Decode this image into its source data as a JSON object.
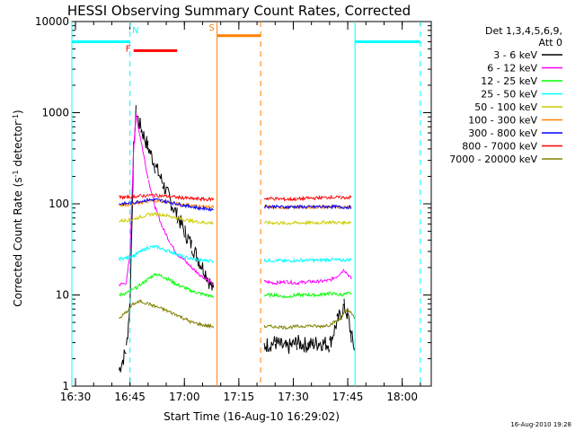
{
  "chart_data": {
    "type": "line",
    "title": "HESSI Observing Summary Count Rates, Corrected",
    "xlabel": "Start Time (16-Aug-10 16:29:02)",
    "ylabel": "Corrected Count Rate (s⁻¹ detector⁻¹)",
    "ylabel_parts": [
      "Corrected Count Rate (s",
      "-1",
      " detector",
      "-1",
      ")"
    ],
    "yscale": "log",
    "xlim": [
      "16:29",
      "18:08"
    ],
    "ylim": [
      1,
      10000
    ],
    "x_ticks": [
      "16:30",
      "16:45",
      "17:00",
      "17:15",
      "17:30",
      "17:45",
      "18:00"
    ],
    "y_ticks": [
      "1",
      "10",
      "100",
      "1000",
      "10000"
    ],
    "grid": false,
    "legend_header": [
      "Det 1,3,4,5,6,9,",
      "Att 0"
    ],
    "legend_position": "right",
    "timestamp": "16-Aug-2010 19:28",
    "gaps": [
      [
        "17:09",
        "17:21"
      ],
      [
        "17:47",
        "18:05"
      ]
    ],
    "series": [
      {
        "name": "3 - 6 keV",
        "color": "#000000",
        "points": [
          [
            "16:42",
            1.5
          ],
          [
            "16:44",
            2.5
          ],
          [
            "16:45",
            8
          ],
          [
            "16:46",
            400
          ],
          [
            "16:46:40",
            1000
          ],
          [
            "16:48",
            680
          ],
          [
            "16:50",
            420
          ],
          [
            "16:52",
            260
          ],
          [
            "16:54",
            170
          ],
          [
            "16:56",
            110
          ],
          [
            "16:58",
            75
          ],
          [
            "17:00",
            50
          ],
          [
            "17:02",
            35
          ],
          [
            "17:04",
            24
          ],
          [
            "17:06",
            17
          ],
          [
            "17:08",
            11
          ],
          [
            "17:22",
            2.8
          ],
          [
            "17:25",
            3
          ],
          [
            "17:28",
            2.6
          ],
          [
            "17:31",
            3
          ],
          [
            "17:34",
            2.8
          ],
          [
            "17:37",
            3
          ],
          [
            "17:40",
            2.9
          ],
          [
            "17:42",
            5
          ],
          [
            "17:44",
            7.5
          ],
          [
            "17:45",
            6
          ],
          [
            "17:46",
            3.5
          ],
          [
            "17:47",
            2.5
          ]
        ]
      },
      {
        "name": "6 - 12 keV",
        "color": "#ff00ff",
        "points": [
          [
            "16:42",
            13
          ],
          [
            "16:44",
            13.5
          ],
          [
            "16:45",
            28
          ],
          [
            "16:46",
            400
          ],
          [
            "16:46:40",
            950
          ],
          [
            "16:48",
            500
          ],
          [
            "16:50",
            190
          ],
          [
            "16:52",
            90
          ],
          [
            "16:54",
            55
          ],
          [
            "16:56",
            38
          ],
          [
            "16:58",
            28
          ],
          [
            "17:00",
            24
          ],
          [
            "17:02",
            20
          ],
          [
            "17:04",
            17
          ],
          [
            "17:06",
            15
          ],
          [
            "17:08",
            13
          ],
          [
            "17:22",
            14
          ],
          [
            "17:25",
            13.5
          ],
          [
            "17:28",
            14
          ],
          [
            "17:31",
            13.5
          ],
          [
            "17:34",
            14
          ],
          [
            "17:37",
            14
          ],
          [
            "17:40",
            14.5
          ],
          [
            "17:42",
            16
          ],
          [
            "17:44",
            19
          ],
          [
            "17:46",
            15
          ],
          [
            "17:48",
            13
          ]
        ]
      },
      {
        "name": "12 - 25 keV",
        "color": "#00ff00",
        "points": [
          [
            "16:42",
            10
          ],
          [
            "16:44",
            10.5
          ],
          [
            "16:46",
            11.5
          ],
          [
            "16:48",
            13
          ],
          [
            "16:50",
            15
          ],
          [
            "16:52",
            17
          ],
          [
            "16:54",
            16
          ],
          [
            "16:56",
            14.5
          ],
          [
            "16:58",
            13
          ],
          [
            "17:00",
            12
          ],
          [
            "17:02",
            11
          ],
          [
            "17:04",
            10.5
          ],
          [
            "17:06",
            10
          ],
          [
            "17:08",
            9.5
          ],
          [
            "17:22",
            10
          ],
          [
            "17:25",
            10
          ],
          [
            "17:28",
            9.5
          ],
          [
            "17:31",
            10
          ],
          [
            "17:34",
            10
          ],
          [
            "17:37",
            10
          ],
          [
            "17:40",
            10.5
          ],
          [
            "17:43",
            10
          ],
          [
            "17:46",
            10.5
          ],
          [
            "17:48",
            10
          ]
        ]
      },
      {
        "name": "25 - 50 keV",
        "color": "#00ffff",
        "points": [
          [
            "16:42",
            25
          ],
          [
            "16:44",
            25.5
          ],
          [
            "16:46",
            27
          ],
          [
            "16:48",
            30
          ],
          [
            "16:50",
            33
          ],
          [
            "16:52",
            34
          ],
          [
            "16:54",
            32
          ],
          [
            "16:56",
            30
          ],
          [
            "16:58",
            28
          ],
          [
            "17:00",
            26
          ],
          [
            "17:02",
            25
          ],
          [
            "17:04",
            24
          ],
          [
            "17:06",
            24
          ],
          [
            "17:08",
            23.5
          ],
          [
            "17:22",
            24
          ],
          [
            "17:25",
            24
          ],
          [
            "17:28",
            23.5
          ],
          [
            "17:31",
            24
          ],
          [
            "17:34",
            24
          ],
          [
            "17:37",
            24
          ],
          [
            "17:40",
            24.5
          ],
          [
            "17:43",
            24
          ],
          [
            "17:46",
            24.5
          ],
          [
            "17:48",
            24
          ]
        ]
      },
      {
        "name": "50 - 100 keV",
        "color": "#cccc00",
        "points": [
          [
            "16:42",
            65
          ],
          [
            "16:44",
            66
          ],
          [
            "16:46",
            68
          ],
          [
            "16:48",
            72
          ],
          [
            "16:50",
            76
          ],
          [
            "16:52",
            78
          ],
          [
            "16:54",
            76
          ],
          [
            "16:56",
            73
          ],
          [
            "16:58",
            70
          ],
          [
            "17:00",
            67
          ],
          [
            "17:02",
            65
          ],
          [
            "17:04",
            63
          ],
          [
            "17:06",
            62
          ],
          [
            "17:08",
            62
          ],
          [
            "17:22",
            62
          ],
          [
            "17:25",
            62
          ],
          [
            "17:28",
            61
          ],
          [
            "17:31",
            62
          ],
          [
            "17:34",
            62
          ],
          [
            "17:37",
            62
          ],
          [
            "17:40",
            63
          ],
          [
            "17:43",
            62
          ],
          [
            "17:46",
            63
          ],
          [
            "17:48",
            62
          ]
        ]
      },
      {
        "name": "100 - 300 keV",
        "color": "#ff8000",
        "points": [
          [
            "16:42",
            98
          ],
          [
            "16:44",
            98
          ],
          [
            "16:46",
            100
          ],
          [
            "16:48",
            103
          ],
          [
            "16:50",
            106
          ],
          [
            "16:52",
            108
          ],
          [
            "16:54",
            106
          ],
          [
            "16:56",
            103
          ],
          [
            "16:58",
            100
          ],
          [
            "17:00",
            98
          ],
          [
            "17:02",
            96
          ],
          [
            "17:04",
            94
          ],
          [
            "17:06",
            93
          ],
          [
            "17:08",
            92
          ],
          [
            "17:22",
            92
          ],
          [
            "17:25",
            92
          ],
          [
            "17:28",
            91
          ],
          [
            "17:31",
            92
          ],
          [
            "17:34",
            92
          ],
          [
            "17:37",
            92
          ],
          [
            "17:40",
            93
          ],
          [
            "17:43",
            92
          ],
          [
            "17:46",
            93
          ],
          [
            "17:48",
            92
          ]
        ]
      },
      {
        "name": "300 - 800 keV",
        "color": "#0000ff",
        "points": [
          [
            "16:42",
            100
          ],
          [
            "16:44",
            101
          ],
          [
            "16:46",
            103
          ],
          [
            "16:48",
            107
          ],
          [
            "16:50",
            110
          ],
          [
            "16:52",
            111
          ],
          [
            "16:54",
            108
          ],
          [
            "16:56",
            104
          ],
          [
            "16:58",
            100
          ],
          [
            "17:00",
            96
          ],
          [
            "17:02",
            93
          ],
          [
            "17:04",
            90
          ],
          [
            "17:06",
            88
          ],
          [
            "17:08",
            87
          ],
          [
            "17:22",
            94
          ],
          [
            "17:25",
            93
          ],
          [
            "17:28",
            92
          ],
          [
            "17:31",
            93
          ],
          [
            "17:34",
            92
          ],
          [
            "17:37",
            93
          ],
          [
            "17:40",
            93
          ],
          [
            "17:43",
            92
          ],
          [
            "17:46",
            92
          ],
          [
            "17:48",
            91
          ]
        ]
      },
      {
        "name": "800 - 7000 keV",
        "color": "#ff0000",
        "points": [
          [
            "16:42",
            118
          ],
          [
            "16:44",
            118
          ],
          [
            "16:46",
            120
          ],
          [
            "16:48",
            122
          ],
          [
            "16:50",
            124
          ],
          [
            "16:52",
            124
          ],
          [
            "16:54",
            122
          ],
          [
            "16:56",
            120
          ],
          [
            "16:58",
            118
          ],
          [
            "17:00",
            116
          ],
          [
            "17:02",
            114
          ],
          [
            "17:04",
            113
          ],
          [
            "17:06",
            112
          ],
          [
            "17:08",
            113
          ],
          [
            "17:22",
            115
          ],
          [
            "17:25",
            114
          ],
          [
            "17:28",
            112
          ],
          [
            "17:31",
            113
          ],
          [
            "17:34",
            115
          ],
          [
            "17:37",
            116
          ],
          [
            "17:40",
            118
          ],
          [
            "17:43",
            117
          ],
          [
            "17:46",
            118
          ],
          [
            "17:48",
            116
          ]
        ]
      },
      {
        "name": "7000 - 20000 keV",
        "color": "#808000",
        "points": [
          [
            "16:42",
            5.5
          ],
          [
            "16:44",
            6.5
          ],
          [
            "16:46",
            8
          ],
          [
            "16:48",
            8.5
          ],
          [
            "16:50",
            8
          ],
          [
            "16:52",
            7.5
          ],
          [
            "16:54",
            7
          ],
          [
            "16:56",
            6.5
          ],
          [
            "16:58",
            6
          ],
          [
            "17:00",
            5.5
          ],
          [
            "17:02",
            5
          ],
          [
            "17:04",
            4.8
          ],
          [
            "17:06",
            4.6
          ],
          [
            "17:08",
            4.5
          ],
          [
            "17:22",
            4.5
          ],
          [
            "17:25",
            4.5
          ],
          [
            "17:28",
            4.4
          ],
          [
            "17:31",
            4.5
          ],
          [
            "17:34",
            4.6
          ],
          [
            "17:37",
            4.5
          ],
          [
            "17:40",
            4.7
          ],
          [
            "17:43",
            5.5
          ],
          [
            "17:45",
            7
          ],
          [
            "17:47",
            5.5
          ],
          [
            "17:48",
            5
          ]
        ]
      }
    ],
    "annotations": {
      "night": {
        "color": "#00ffff",
        "level": 6000,
        "segments": [
          [
            "16:29",
            "16:45"
          ],
          [
            "17:47",
            "18:05"
          ]
        ],
        "boundaries": [
          [
            "16:29",
            "solid"
          ],
          [
            "16:45",
            "dashed"
          ],
          [
            "17:47",
            "solid"
          ],
          [
            "18:05",
            "dashed"
          ]
        ]
      },
      "saa": {
        "color": "#ff8000",
        "level": 7000,
        "segments": [
          [
            "17:09",
            "17:21"
          ]
        ],
        "boundaries": [
          [
            "17:09",
            "solid"
          ],
          [
            "17:21",
            "dashed"
          ]
        ]
      },
      "flare": {
        "color": "#ff0000",
        "level": 4800,
        "segments": [
          [
            "16:46",
            "16:58"
          ]
        ]
      },
      "markers": [
        {
          "label": "N",
          "color": "#00ffff",
          "time": "16:46:30",
          "level": 8000
        },
        {
          "label": "F",
          "color": "#ff0000",
          "time": "16:44:30",
          "level": 5000
        },
        {
          "label": "S",
          "color": "#ff8000",
          "time": "17:07:30",
          "level": 8500
        }
      ]
    }
  }
}
